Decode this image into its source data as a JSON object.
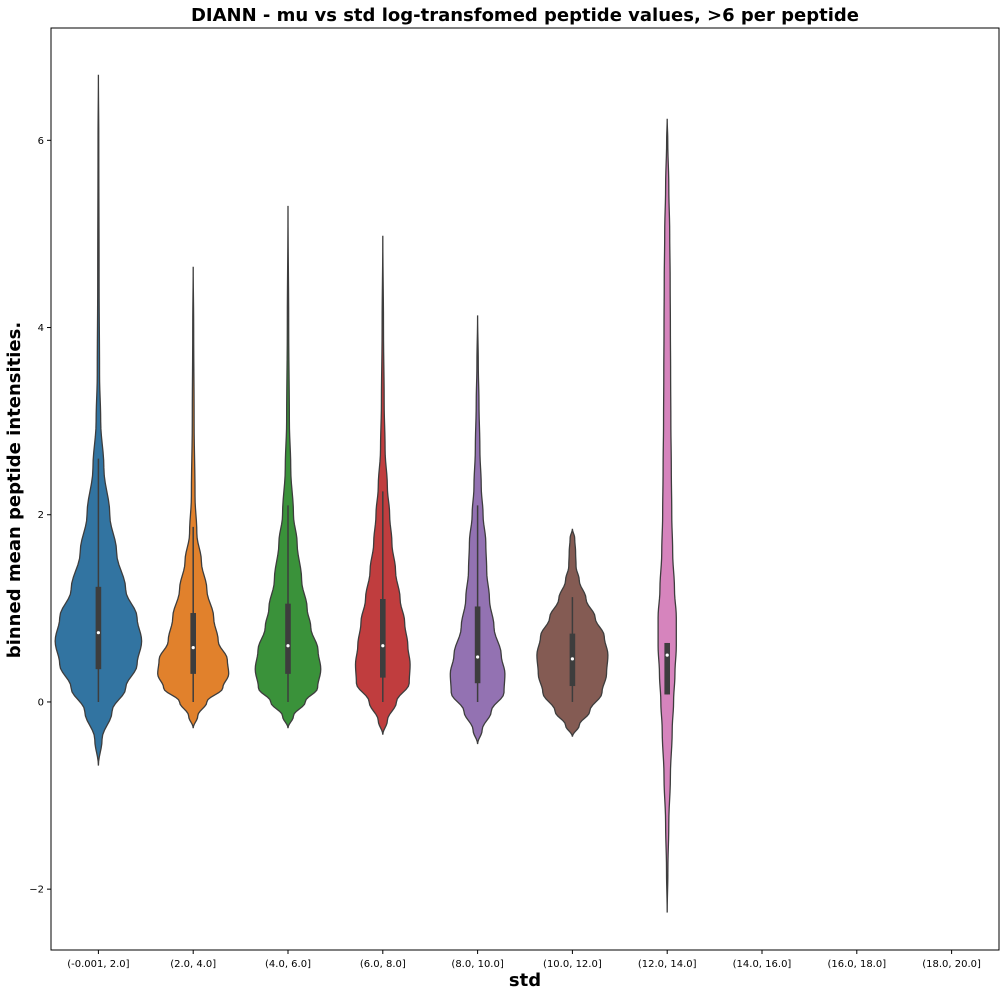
{
  "chart_data": {
    "type": "violin",
    "title": "DIANN - mu vs std log-transfomed peptide values,  >6 per peptide",
    "xlabel": "std",
    "ylabel": "binned mean peptide intensities.",
    "ylim": [
      -2.65,
      7.2
    ],
    "yticks": [
      -2,
      0,
      2,
      4,
      6
    ],
    "ytick_labels": [
      "−2",
      "0",
      "2",
      "4",
      "6"
    ],
    "grid": false,
    "categories": [
      "(-0.001, 2.0]",
      "(2.0, 4.0]",
      "(4.0, 6.0]",
      "(6.0, 8.0]",
      "(8.0, 10.0]",
      "(10.0, 12.0]",
      "(12.0, 14.0]",
      "(14.0, 16.0]",
      "(16.0, 18.0]",
      "(18.0, 20.0]"
    ],
    "violins": [
      {
        "category": "(-0.001, 2.0]",
        "color": "#3274a1",
        "min": -0.68,
        "max": 6.7,
        "q1": 0.35,
        "median": 0.74,
        "q3": 1.23,
        "whisker_low": 0.0,
        "whisker_high": 2.6,
        "profile": [
          [
            -0.68,
            0
          ],
          [
            -0.4,
            0.08
          ],
          [
            -0.1,
            0.3
          ],
          [
            0.15,
            0.6
          ],
          [
            0.4,
            0.85
          ],
          [
            0.65,
            0.95
          ],
          [
            0.9,
            0.85
          ],
          [
            1.2,
            0.6
          ],
          [
            1.6,
            0.4
          ],
          [
            2.0,
            0.25
          ],
          [
            2.5,
            0.12
          ],
          [
            3.0,
            0.05
          ],
          [
            3.5,
            0.025
          ],
          [
            4.5,
            0.015
          ],
          [
            6.0,
            0.008
          ],
          [
            6.7,
            0
          ]
        ]
      },
      {
        "category": "(2.0, 4.0]",
        "color": "#e1812c",
        "min": -0.28,
        "max": 4.65,
        "q1": 0.3,
        "median": 0.58,
        "q3": 0.95,
        "whisker_low": 0.0,
        "whisker_high": 1.87,
        "profile": [
          [
            -0.28,
            0
          ],
          [
            -0.15,
            0.1
          ],
          [
            0.0,
            0.3
          ],
          [
            0.15,
            0.65
          ],
          [
            0.3,
            0.78
          ],
          [
            0.45,
            0.75
          ],
          [
            0.65,
            0.55
          ],
          [
            0.9,
            0.45
          ],
          [
            1.2,
            0.3
          ],
          [
            1.5,
            0.18
          ],
          [
            1.8,
            0.08
          ],
          [
            2.2,
            0.04
          ],
          [
            3.0,
            0.02
          ],
          [
            4.0,
            0.01
          ],
          [
            4.65,
            0
          ]
        ]
      },
      {
        "category": "(4.0, 6.0]",
        "color": "#3a923a",
        "min": -0.28,
        "max": 5.3,
        "q1": 0.3,
        "median": 0.6,
        "q3": 1.05,
        "whisker_low": 0.0,
        "whisker_high": 2.1,
        "profile": [
          [
            -0.28,
            0
          ],
          [
            -0.15,
            0.12
          ],
          [
            0.0,
            0.38
          ],
          [
            0.15,
            0.65
          ],
          [
            0.35,
            0.72
          ],
          [
            0.55,
            0.66
          ],
          [
            0.8,
            0.5
          ],
          [
            1.0,
            0.42
          ],
          [
            1.3,
            0.3
          ],
          [
            1.7,
            0.2
          ],
          [
            2.0,
            0.12
          ],
          [
            2.5,
            0.06
          ],
          [
            3.0,
            0.03
          ],
          [
            4.0,
            0.015
          ],
          [
            5.3,
            0
          ]
        ]
      },
      {
        "category": "(6.0, 8.0]",
        "color": "#c03d3e",
        "min": -0.35,
        "max": 4.98,
        "q1": 0.26,
        "median": 0.6,
        "q3": 1.1,
        "whisker_low": 0.0,
        "whisker_high": 2.25,
        "profile": [
          [
            -0.35,
            0
          ],
          [
            -0.2,
            0.1
          ],
          [
            0.0,
            0.3
          ],
          [
            0.2,
            0.58
          ],
          [
            0.4,
            0.6
          ],
          [
            0.6,
            0.55
          ],
          [
            0.85,
            0.48
          ],
          [
            1.1,
            0.38
          ],
          [
            1.4,
            0.28
          ],
          [
            1.7,
            0.2
          ],
          [
            2.0,
            0.15
          ],
          [
            2.3,
            0.1
          ],
          [
            2.7,
            0.05
          ],
          [
            3.2,
            0.03
          ],
          [
            4.0,
            0.015
          ],
          [
            4.98,
            0
          ]
        ]
      },
      {
        "category": "(8.0, 10.0]",
        "color": "#9372b2",
        "min": -0.45,
        "max": 4.13,
        "q1": 0.2,
        "median": 0.48,
        "q3": 1.02,
        "whisker_low": 0.0,
        "whisker_high": 2.1,
        "profile": [
          [
            -0.45,
            0
          ],
          [
            -0.3,
            0.1
          ],
          [
            -0.1,
            0.3
          ],
          [
            0.1,
            0.58
          ],
          [
            0.3,
            0.6
          ],
          [
            0.5,
            0.52
          ],
          [
            0.8,
            0.36
          ],
          [
            1.1,
            0.26
          ],
          [
            1.4,
            0.2
          ],
          [
            1.7,
            0.18
          ],
          [
            2.0,
            0.12
          ],
          [
            2.3,
            0.08
          ],
          [
            2.7,
            0.05
          ],
          [
            3.2,
            0.03
          ],
          [
            3.6,
            0.015
          ],
          [
            4.13,
            0
          ]
        ]
      },
      {
        "category": "(10.0, 12.0]",
        "color": "#845b53",
        "min": -0.37,
        "max": 1.85,
        "q1": 0.17,
        "median": 0.46,
        "q3": 0.73,
        "whisker_low": 0.0,
        "whisker_high": 1.12,
        "profile": [
          [
            -0.37,
            0
          ],
          [
            -0.25,
            0.15
          ],
          [
            -0.1,
            0.38
          ],
          [
            0.1,
            0.65
          ],
          [
            0.3,
            0.75
          ],
          [
            0.5,
            0.78
          ],
          [
            0.7,
            0.7
          ],
          [
            0.9,
            0.5
          ],
          [
            1.1,
            0.3
          ],
          [
            1.3,
            0.15
          ],
          [
            1.45,
            0.08
          ],
          [
            1.6,
            0.07
          ],
          [
            1.75,
            0.05
          ],
          [
            1.85,
            0
          ]
        ]
      },
      {
        "category": "(12.0, 14.0]",
        "color": "#d684bd",
        "min": -2.25,
        "max": 6.23,
        "q1": 0.08,
        "median": 0.5,
        "q3": 0.63,
        "whisker_low": 0.08,
        "whisker_high": 0.63,
        "profile": [
          [
            -2.25,
            0
          ],
          [
            -1.8,
            0.015
          ],
          [
            -1.3,
            0.035
          ],
          [
            -0.8,
            0.07
          ],
          [
            -0.3,
            0.11
          ],
          [
            0.0,
            0.14
          ],
          [
            0.3,
            0.17
          ],
          [
            0.6,
            0.2
          ],
          [
            0.9,
            0.2
          ],
          [
            1.2,
            0.16
          ],
          [
            1.6,
            0.12
          ],
          [
            2.0,
            0.1
          ],
          [
            2.5,
            0.09
          ],
          [
            3.0,
            0.08
          ],
          [
            3.5,
            0.075
          ],
          [
            4.0,
            0.07
          ],
          [
            4.5,
            0.065
          ],
          [
            5.0,
            0.055
          ],
          [
            5.5,
            0.035
          ],
          [
            6.0,
            0.012
          ],
          [
            6.23,
            0
          ]
        ]
      }
    ]
  }
}
